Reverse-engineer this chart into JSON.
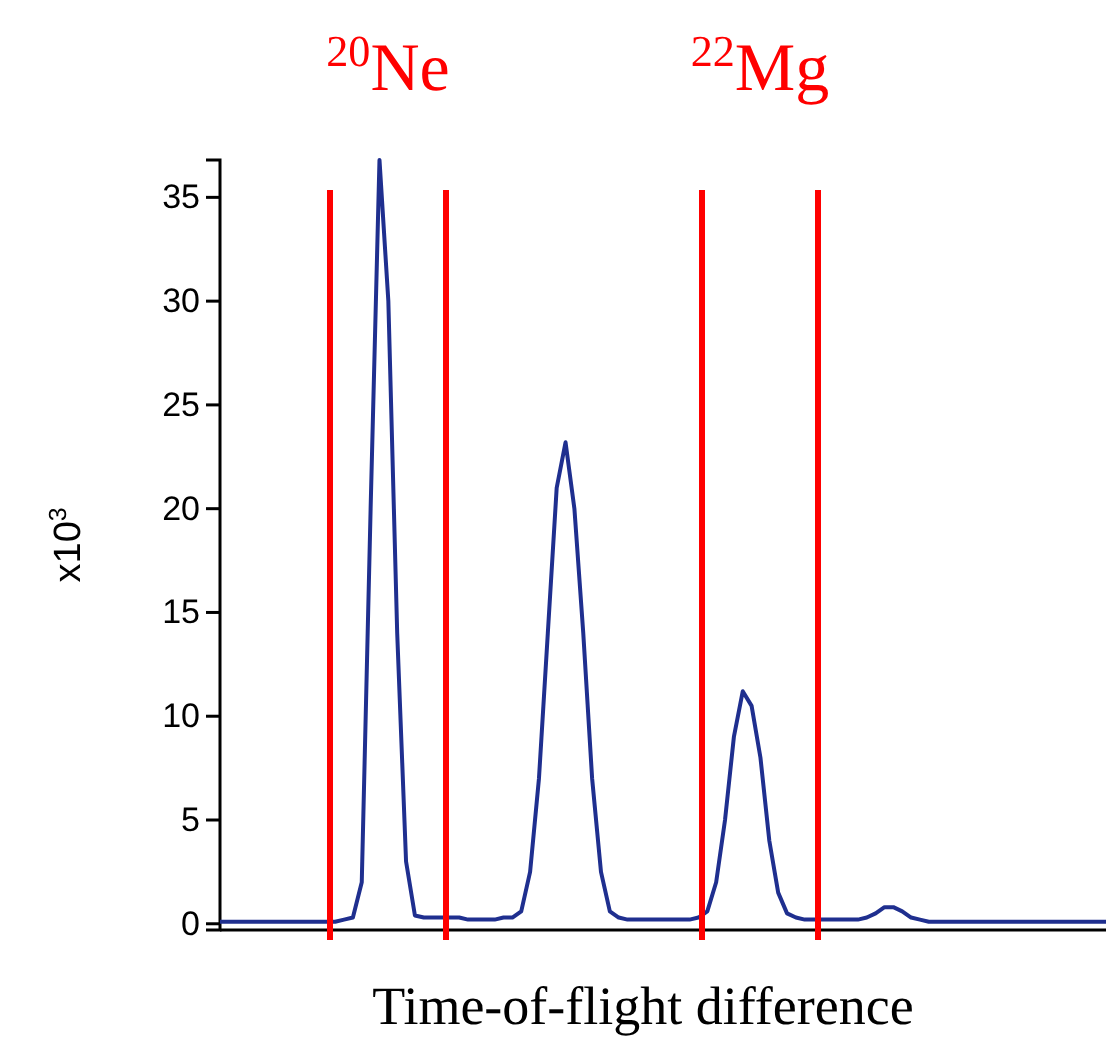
{
  "chart_data": {
    "type": "line",
    "xlabel": "Time-of-flight difference",
    "ylabel": "x10$^{3}$",
    "categories": [
      null,
      null,
      null,
      null,
      null,
      null,
      null,
      null,
      null,
      null,
      null,
      null,
      null,
      null,
      null,
      null,
      null,
      null,
      null,
      null,
      null,
      null,
      null,
      null,
      null,
      null,
      null,
      null,
      null,
      null,
      null,
      null,
      null,
      null,
      null,
      null,
      null,
      null,
      null,
      null,
      null,
      null,
      null,
      null,
      null,
      null,
      null,
      null,
      null,
      null,
      null,
      null,
      null,
      null,
      null,
      null,
      null,
      null,
      null,
      null,
      null,
      null,
      null,
      null,
      null,
      null,
      null,
      null,
      null,
      null,
      null,
      null,
      null,
      null,
      null,
      null,
      null,
      null,
      null,
      null,
      null,
      null,
      null,
      null,
      null,
      null,
      null,
      null,
      null,
      null,
      null,
      null,
      null,
      null,
      null,
      null,
      null,
      null,
      null,
      null,
      null
    ],
    "series": [
      {
        "color": "#1f2f8f",
        "values": [
          0.1,
          0.1,
          0.1,
          0.1,
          0.1,
          0.1,
          0.1,
          0.1,
          0.1,
          0.1,
          0.1,
          0.1,
          0.1,
          0.1,
          0.2,
          0.3,
          2,
          20,
          36.8,
          30,
          14,
          3,
          0.4,
          0.3,
          0.3,
          0.3,
          0.3,
          0.3,
          0.2,
          0.2,
          0.2,
          0.2,
          0.3,
          0.3,
          0.6,
          2.5,
          7,
          14,
          21,
          23.2,
          20,
          14,
          7,
          2.5,
          0.6,
          0.3,
          0.2,
          0.2,
          0.2,
          0.2,
          0.2,
          0.2,
          0.2,
          0.2,
          0.3,
          0.6,
          2,
          5,
          9,
          11.2,
          10.5,
          8,
          4,
          1.5,
          0.5,
          0.3,
          0.2,
          0.2,
          0.2,
          0.2,
          0.2,
          0.2,
          0.2,
          0.3,
          0.5,
          0.8,
          0.8,
          0.6,
          0.3,
          0.2,
          0.1,
          0.1,
          0.1,
          0.1,
          0.1,
          0.1,
          0.1,
          0.1,
          0.1,
          0.1,
          0.1,
          0.1,
          0.1,
          0.1,
          0.1,
          0.1,
          0.1,
          0.1,
          0.1,
          0.1,
          0.1
        ]
      }
    ],
    "ylim": [
      -0.3,
      36.8
    ],
    "yticks": [
      0,
      5,
      10,
      15,
      20,
      25,
      30,
      35
    ],
    "tick_labels": "y",
    "annotations": [
      "$^{20}$Ne",
      "$^{22}$Mg"
    ]
  }
}
